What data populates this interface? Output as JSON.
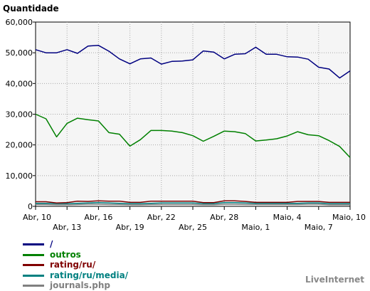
{
  "chart_data": {
    "type": "line",
    "ylabel": "Quantidade",
    "ylim": [
      0,
      60000
    ],
    "yticks": [
      0,
      10000,
      20000,
      30000,
      40000,
      50000,
      60000
    ],
    "ytick_labels": [
      "0",
      "10,000",
      "20,000",
      "30,000",
      "40,000",
      "50,000",
      "60,000"
    ],
    "x": [
      "Abr, 10",
      "Abr, 11",
      "Abr, 12",
      "Abr, 13",
      "Abr, 14",
      "Abr, 15",
      "Abr, 16",
      "Abr, 17",
      "Abr, 18",
      "Abr, 19",
      "Abr, 20",
      "Abr, 21",
      "Abr, 22",
      "Abr, 23",
      "Abr, 24",
      "Abr, 25",
      "Abr, 26",
      "Abr, 27",
      "Abr, 28",
      "Abr, 29",
      "Abr, 30",
      "Maio, 1",
      "Maio, 2",
      "Maio, 3",
      "Maio, 4",
      "Maio, 5",
      "Maio, 6",
      "Maio, 7",
      "Maio, 8",
      "Maio, 9",
      "Maio, 10"
    ],
    "xtick_labels": [
      {
        "label": "Abr, 10",
        "x_index": 0,
        "row": 0
      },
      {
        "label": "Abr, 13",
        "x_index": 3,
        "row": 1
      },
      {
        "label": "Abr, 16",
        "x_index": 6,
        "row": 0
      },
      {
        "label": "Abr, 19",
        "x_index": 9,
        "row": 1
      },
      {
        "label": "Abr, 22",
        "x_index": 12,
        "row": 0
      },
      {
        "label": "Abr, 25",
        "x_index": 15,
        "row": 1
      },
      {
        "label": "Abr, 28",
        "x_index": 18,
        "row": 0
      },
      {
        "label": "Maio, 1",
        "x_index": 21,
        "row": 1
      },
      {
        "label": "Maio, 4",
        "x_index": 24,
        "row": 0
      },
      {
        "label": "Maio, 7",
        "x_index": 27,
        "row": 1
      },
      {
        "label": "Maio, 10",
        "x_index": 30,
        "row": 0
      }
    ],
    "grid": true,
    "series": [
      {
        "name": "/",
        "color": "#000080",
        "values": [
          51000,
          50000,
          50000,
          51000,
          49800,
          52200,
          52400,
          50500,
          48000,
          46400,
          48000,
          48300,
          46300,
          47200,
          47300,
          47700,
          50600,
          50200,
          48000,
          49500,
          49700,
          51800,
          49500,
          49500,
          48700,
          48600,
          47900,
          45300,
          44700,
          41800,
          44100
        ]
      },
      {
        "name": "outros",
        "color": "#008000",
        "values": [
          30000,
          28500,
          22600,
          27000,
          28700,
          28200,
          27800,
          24000,
          23500,
          19600,
          21700,
          24700,
          24700,
          24500,
          24000,
          23000,
          21200,
          22800,
          24500,
          24300,
          23700,
          21300,
          21600,
          22000,
          22900,
          24300,
          23300,
          23000,
          21400,
          19500,
          15900
        ]
      },
      {
        "name": "rating/ru/",
        "color": "#800000",
        "values": [
          1500,
          1500,
          1100,
          1200,
          1700,
          1600,
          1800,
          1700,
          1700,
          1300,
          1300,
          1700,
          1700,
          1700,
          1700,
          1700,
          1200,
          1200,
          1800,
          1800,
          1600,
          1300,
          1300,
          1300,
          1300,
          1600,
          1600,
          1600,
          1300,
          1300,
          1300
        ]
      },
      {
        "name": "rating/ru/media/",
        "color": "#008080",
        "values": [
          1000,
          1000,
          900,
          900,
          1000,
          1100,
          1200,
          1100,
          1000,
          900,
          900,
          1000,
          1100,
          1100,
          1100,
          1100,
          900,
          900,
          1200,
          1200,
          1100,
          1000,
          1000,
          1000,
          1000,
          1000,
          1100,
          1100,
          900,
          900,
          900
        ]
      },
      {
        "name": "journals.php",
        "color": "#808080",
        "values": [
          600,
          600,
          500,
          500,
          600,
          700,
          700,
          600,
          600,
          500,
          500,
          600,
          600,
          600,
          600,
          600,
          500,
          500,
          700,
          700,
          600,
          600,
          600,
          600,
          600,
          600,
          700,
          700,
          500,
          500,
          500
        ]
      }
    ]
  },
  "branding": "LiveInternet"
}
